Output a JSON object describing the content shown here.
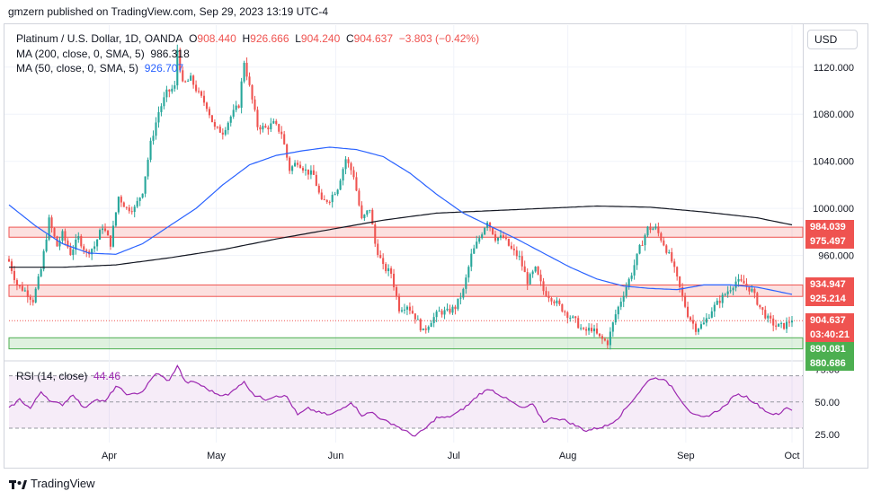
{
  "publisher": "gmzern published on TradingView.com, Sep 29, 2023 13:19 UTC-4",
  "footer_brand": "TradingView",
  "currency_button": "USD",
  "legend": {
    "symbol": "Platinum / U.S. Dollar, 1D, OANDA",
    "open_label": "O",
    "open": "908.440",
    "high_label": "H",
    "high": "926.666",
    "low_label": "L",
    "low": "904.240",
    "close_label": "C",
    "close": "904.637",
    "change": "−3.803 (−0.42%)",
    "ma200_label": "MA (200, close, 0, SMA, 5)",
    "ma200_value": "986.318",
    "ma50_label": "MA (50, close, 0, SMA, 5)",
    "ma50_value": "926.707",
    "rsi_label": "RSI (14, close)",
    "rsi_value": "44.46"
  },
  "colors": {
    "up": "#26a69a",
    "down": "#ef5350",
    "ma200": "#131722",
    "ma50": "#2962ff",
    "rsi": "#9c27b0",
    "resistance_zone": "#ef5350",
    "support_zone": "#4caf50"
  },
  "price_badges": [
    {
      "label": "984.039",
      "color": "#ef5350"
    },
    {
      "label": "975.497",
      "color": "#ef5350"
    },
    {
      "label": "934.947",
      "color": "#ef5350"
    },
    {
      "label": "925.214",
      "color": "#ef5350"
    },
    {
      "label": "904.637",
      "color": "#ef5350"
    },
    {
      "label": "03:40:21",
      "color": "#ef5350"
    },
    {
      "label": "890.081",
      "color": "#4caf50"
    },
    {
      "label": "880.686",
      "color": "#4caf50"
    }
  ],
  "chart_data": [
    {
      "type": "candlestick",
      "title": "Platinum / U.S. Dollar, 1D, OANDA",
      "y_ticks": [
        "1120.000",
        "1080.000",
        "1040.000",
        "1000.000",
        "960.000"
      ],
      "y_tick_values": [
        1120,
        1080,
        1040,
        1000,
        960
      ],
      "ylim": [
        872,
        1145
      ],
      "x_ticks": [
        "Apr",
        "May",
        "Jun",
        "Jul",
        "Aug",
        "Sep",
        "Oct"
      ],
      "zones": [
        {
          "from": 975.497,
          "to": 984.039,
          "kind": "resistance"
        },
        {
          "from": 925.214,
          "to": 934.947,
          "kind": "resistance"
        },
        {
          "from": 880.686,
          "to": 890.081,
          "kind": "support"
        }
      ],
      "last_price_line": 904.637,
      "close_anchors": [
        [
          0,
          955
        ],
        [
          3,
          935
        ],
        [
          6,
          930
        ],
        [
          9,
          922
        ],
        [
          12,
          948
        ],
        [
          15,
          990
        ],
        [
          18,
          968
        ],
        [
          20,
          978
        ],
        [
          23,
          962
        ],
        [
          26,
          975
        ],
        [
          29,
          962
        ],
        [
          32,
          968
        ],
        [
          35,
          985
        ],
        [
          38,
          970
        ],
        [
          41,
          1010
        ],
        [
          44,
          1000
        ],
        [
          47,
          1000
        ],
        [
          50,
          1015
        ],
        [
          53,
          1055
        ],
        [
          56,
          1082
        ],
        [
          59,
          1098
        ],
        [
          62,
          1103
        ],
        [
          63,
          1135
        ],
        [
          65,
          1105
        ],
        [
          68,
          1110
        ],
        [
          71,
          1097
        ],
        [
          74,
          1087
        ],
        [
          77,
          1068
        ],
        [
          80,
          1065
        ],
        [
          83,
          1078
        ],
        [
          86,
          1088
        ],
        [
          88,
          1125
        ],
        [
          90,
          1103
        ],
        [
          93,
          1070
        ],
        [
          96,
          1068
        ],
        [
          99,
          1072
        ],
        [
          102,
          1064
        ],
        [
          105,
          1033
        ],
        [
          108,
          1040
        ],
        [
          111,
          1032
        ],
        [
          114,
          1028
        ],
        [
          117,
          1005
        ],
        [
          120,
          1008
        ],
        [
          123,
          1018
        ],
        [
          126,
          1042
        ],
        [
          129,
          1028
        ],
        [
          132,
          990
        ],
        [
          135,
          1000
        ],
        [
          137,
          970
        ],
        [
          140,
          950
        ],
        [
          143,
          945
        ],
        [
          146,
          915
        ],
        [
          149,
          918
        ],
        [
          152,
          908
        ],
        [
          155,
          895
        ],
        [
          158,
          905
        ],
        [
          161,
          912
        ],
        [
          164,
          912
        ],
        [
          167,
          916
        ],
        [
          170,
          930
        ],
        [
          173,
          960
        ],
        [
          176,
          975
        ],
        [
          179,
          990
        ],
        [
          182,
          975
        ],
        [
          185,
          975
        ],
        [
          188,
          965
        ],
        [
          191,
          958
        ],
        [
          194,
          938
        ],
        [
          197,
          948
        ],
        [
          200,
          930
        ],
        [
          203,
          924
        ],
        [
          206,
          917
        ],
        [
          209,
          910
        ],
        [
          212,
          904
        ],
        [
          215,
          895
        ],
        [
          218,
          898
        ],
        [
          221,
          890
        ],
        [
          224,
          886
        ],
        [
          227,
          910
        ],
        [
          230,
          928
        ],
        [
          233,
          945
        ],
        [
          236,
          966
        ],
        [
          239,
          983
        ],
        [
          242,
          983
        ],
        [
          245,
          970
        ],
        [
          248,
          955
        ],
        [
          251,
          932
        ],
        [
          254,
          910
        ],
        [
          257,
          898
        ],
        [
          260,
          902
        ],
        [
          263,
          914
        ],
        [
          266,
          922
        ],
        [
          269,
          930
        ],
        [
          272,
          938
        ],
        [
          275,
          936
        ],
        [
          278,
          930
        ],
        [
          281,
          916
        ],
        [
          284,
          906
        ],
        [
          287,
          900
        ],
        [
          290,
          900
        ],
        [
          293,
          906
        ]
      ],
      "ma50_anchors": [
        [
          0,
          1003
        ],
        [
          10,
          985
        ],
        [
          20,
          970
        ],
        [
          30,
          962
        ],
        [
          40,
          961
        ],
        [
          50,
          970
        ],
        [
          60,
          985
        ],
        [
          70,
          1000
        ],
        [
          80,
          1020
        ],
        [
          90,
          1037
        ],
        [
          100,
          1045
        ],
        [
          110,
          1049
        ],
        [
          120,
          1052
        ],
        [
          130,
          1050
        ],
        [
          140,
          1044
        ],
        [
          150,
          1030
        ],
        [
          160,
          1012
        ],
        [
          170,
          996
        ],
        [
          180,
          985
        ],
        [
          190,
          974
        ],
        [
          200,
          962
        ],
        [
          210,
          950
        ],
        [
          220,
          940
        ],
        [
          230,
          934
        ],
        [
          240,
          932
        ],
        [
          250,
          931
        ],
        [
          260,
          935
        ],
        [
          270,
          935
        ],
        [
          280,
          933
        ],
        [
          293,
          927
        ]
      ],
      "ma200_anchors": [
        [
          0,
          950
        ],
        [
          20,
          950
        ],
        [
          40,
          952
        ],
        [
          60,
          958
        ],
        [
          80,
          965
        ],
        [
          100,
          974
        ],
        [
          120,
          982
        ],
        [
          140,
          990
        ],
        [
          160,
          996
        ],
        [
          180,
          998
        ],
        [
          200,
          1000
        ],
        [
          220,
          1002
        ],
        [
          240,
          1001
        ],
        [
          260,
          997
        ],
        [
          280,
          992
        ],
        [
          293,
          986
        ]
      ]
    },
    {
      "type": "line",
      "title": "RSI (14, close)",
      "y_ticks": [
        "75.00",
        "50.00",
        "25.00"
      ],
      "y_tick_values": [
        75,
        50,
        25
      ],
      "ylim": [
        19,
        80
      ],
      "band": [
        30,
        70
      ],
      "rsi_anchors": [
        [
          0,
          45
        ],
        [
          4,
          52
        ],
        [
          8,
          45
        ],
        [
          12,
          58
        ],
        [
          16,
          50
        ],
        [
          20,
          48
        ],
        [
          24,
          56
        ],
        [
          28,
          45
        ],
        [
          32,
          52
        ],
        [
          36,
          50
        ],
        [
          40,
          62
        ],
        [
          45,
          55
        ],
        [
          50,
          58
        ],
        [
          55,
          72
        ],
        [
          60,
          66
        ],
        [
          63,
          78
        ],
        [
          66,
          65
        ],
        [
          70,
          65
        ],
        [
          74,
          60
        ],
        [
          78,
          56
        ],
        [
          82,
          55
        ],
        [
          86,
          63
        ],
        [
          88,
          65
        ],
        [
          92,
          55
        ],
        [
          96,
          52
        ],
        [
          100,
          55
        ],
        [
          104,
          54
        ],
        [
          108,
          40
        ],
        [
          112,
          45
        ],
        [
          116,
          42
        ],
        [
          120,
          40
        ],
        [
          124,
          44
        ],
        [
          128,
          50
        ],
        [
          132,
          40
        ],
        [
          136,
          42
        ],
        [
          140,
          36
        ],
        [
          144,
          33
        ],
        [
          148,
          28
        ],
        [
          152,
          24
        ],
        [
          156,
          30
        ],
        [
          160,
          38
        ],
        [
          164,
          38
        ],
        [
          168,
          42
        ],
        [
          172,
          48
        ],
        [
          176,
          56
        ],
        [
          180,
          60
        ],
        [
          184,
          55
        ],
        [
          188,
          50
        ],
        [
          192,
          45
        ],
        [
          196,
          48
        ],
        [
          200,
          35
        ],
        [
          204,
          38
        ],
        [
          208,
          36
        ],
        [
          212,
          32
        ],
        [
          216,
          28
        ],
        [
          220,
          30
        ],
        [
          224,
          32
        ],
        [
          228,
          38
        ],
        [
          232,
          48
        ],
        [
          236,
          58
        ],
        [
          240,
          68
        ],
        [
          244,
          68
        ],
        [
          248,
          62
        ],
        [
          252,
          50
        ],
        [
          256,
          40
        ],
        [
          260,
          38
        ],
        [
          264,
          42
        ],
        [
          268,
          47
        ],
        [
          272,
          56
        ],
        [
          276,
          54
        ],
        [
          280,
          48
        ],
        [
          284,
          42
        ],
        [
          288,
          40
        ],
        [
          291,
          46
        ],
        [
          293,
          44
        ]
      ]
    }
  ]
}
